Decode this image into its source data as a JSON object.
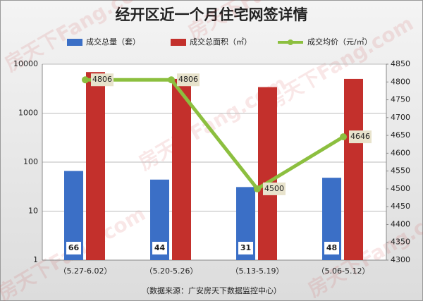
{
  "chart_data": {
    "type": "bar",
    "title": "经开区近一个月住宅网签详情",
    "categories": [
      "（5.27-6.02）",
      "（5.20-5.26）",
      "（5.13-5.19）",
      "（5.06-5.12）"
    ],
    "series": [
      {
        "name": "成交总量（套）",
        "color": "#3b6fc6",
        "type": "bar",
        "values": [
          66,
          44,
          31,
          48
        ],
        "show_labels": true
      },
      {
        "name": "成交总面积（㎡）",
        "color": "#c3302c",
        "type": "bar",
        "values": [
          6900,
          5000,
          3400,
          5000
        ]
      },
      {
        "name": "成交均价（元/㎡）",
        "color": "#8cbf3f",
        "type": "line",
        "axis": "y2",
        "values": [
          4806,
          4806,
          4500,
          4646
        ],
        "show_labels": true
      }
    ],
    "ylim": [
      1,
      10000
    ],
    "yticks": [
      1,
      10,
      100,
      1000,
      10000
    ],
    "log_y": true,
    "y2lim": [
      4300,
      4850
    ],
    "y2ticks": [
      4300,
      4350,
      4400,
      4450,
      4500,
      4550,
      4600,
      4650,
      4700,
      4750,
      4800,
      4850
    ],
    "grid": true,
    "legend": "top",
    "source": "（数据来源：广安房天下数据监控中心）",
    "watermark": "房天下Fang.com"
  }
}
